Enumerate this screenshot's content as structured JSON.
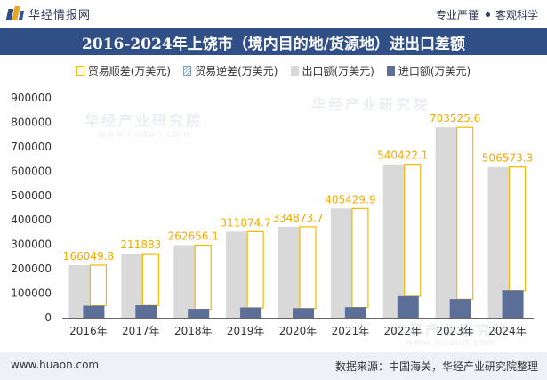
{
  "header": {
    "brand": "华经情报网",
    "slogan_left": "专业严谨",
    "slogan_right": "客观科学"
  },
  "title": "2016-2024年上饶市（境内目的地/货源地）进出口差额",
  "footer": {
    "url": "www.huaon.com",
    "source": "数据来源：中国海关，华经产业研究院整理"
  },
  "watermark": {
    "text": "华经产业研究院",
    "url": "www.huaon.com"
  },
  "colors": {
    "export": "#d9d9d9",
    "import": "#5b6f99",
    "surplus_border": "#f5b800",
    "surplus_label": "#f2a900",
    "title_bg": "#2f4f86"
  },
  "chart_data": {
    "type": "bar",
    "categories": [
      "2016年",
      "2017年",
      "2018年",
      "2019年",
      "2020年",
      "2021年",
      "2022年",
      "2023年",
      "2024年"
    ],
    "legend": [
      "贸易顺差(万美元)",
      "贸易逆差(万美元)",
      "出口额(万美元)",
      "进口额(万美元)"
    ],
    "legend_position": "top",
    "series": [
      {
        "name": "贸易顺差(万美元)",
        "values": [
          166049.8,
          211883,
          262656.1,
          311874.7,
          334873.7,
          405429.9,
          540422.1,
          703525.6,
          506573.3
        ],
        "labels": [
          "166049.8",
          "211883",
          "262656.1",
          "311874.7",
          "334873.7",
          "405429.9",
          "540422.1",
          "703525.6",
          "506573.3"
        ]
      },
      {
        "name": "贸易逆差(万美元)",
        "values": [
          0,
          0,
          0,
          0,
          0,
          0,
          0,
          0,
          0
        ]
      },
      {
        "name": "出口额(万美元)",
        "values": [
          215000,
          262000,
          297000,
          352000,
          372000,
          447000,
          628000,
          779000,
          617000
        ]
      },
      {
        "name": "进口额(万美元)",
        "values": [
          49000,
          51000,
          36000,
          42000,
          39000,
          43000,
          88000,
          76000,
          112000
        ]
      }
    ],
    "yticks": [
      "0",
      "100000",
      "200000",
      "300000",
      "400000",
      "500000",
      "600000",
      "700000",
      "800000",
      "900000"
    ],
    "ylim": [
      0,
      900000
    ],
    "grid": false
  }
}
